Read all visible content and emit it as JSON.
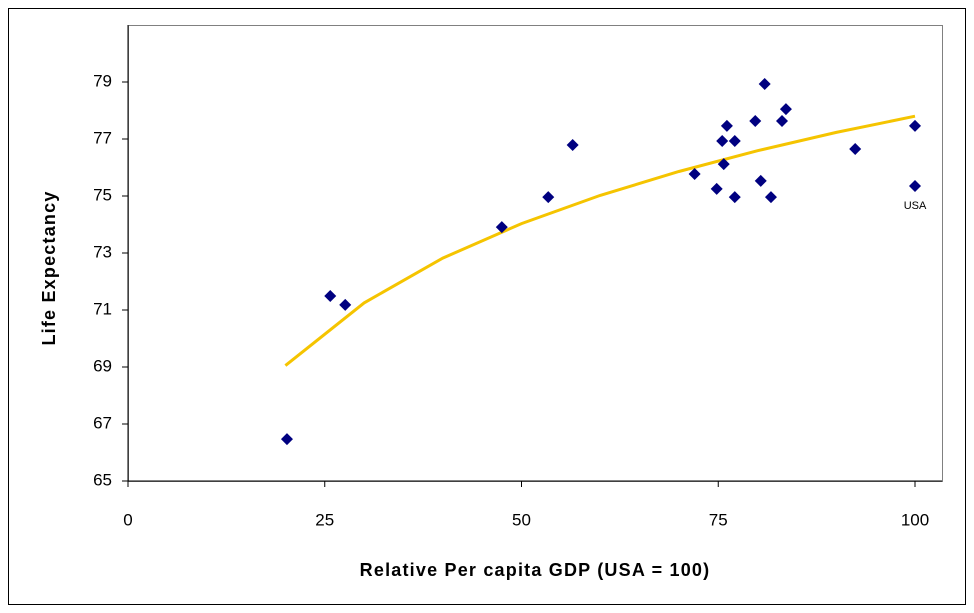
{
  "chart_data": {
    "type": "scatter",
    "x_label": "Relative Per capita GDP (USA = 100)",
    "y_label": "Life Expectancy",
    "series": [
      {
        "color": "#000080",
        "x": [
          20.2,
          25.7,
          27.6,
          47.5,
          53.4,
          56.5,
          72.0,
          74.8,
          75.5,
          75.7,
          76.1,
          77.1,
          77.1,
          79.7,
          80.4,
          80.9,
          81.7,
          83.1,
          83.6,
          92.4,
          100,
          100
        ],
        "values": [
          66.47,
          71.49,
          71.18,
          73.91,
          74.96,
          76.79,
          75.77,
          75.25,
          76.93,
          76.12,
          77.46,
          76.93,
          74.96,
          77.63,
          75.53,
          78.93,
          74.96,
          77.63,
          78.05,
          76.65,
          77.46,
          75.35
        ]
      }
    ],
    "trendline": {
      "color": "#f5c400",
      "x": [
        20,
        30,
        40,
        50,
        60,
        70,
        80,
        90,
        100
      ],
      "values": [
        69.05,
        71.25,
        72.82,
        74.03,
        75.02,
        75.86,
        76.59,
        77.23,
        77.8
      ]
    },
    "annotations": [
      {
        "text": "USA",
        "x": 100,
        "y": 75.35
      }
    ],
    "xlim": [
      0,
      100
    ],
    "xticks": [
      0,
      25,
      50,
      75,
      100
    ],
    "ylim": [
      65,
      79
    ],
    "yticks": [
      65,
      67,
      69,
      71,
      73,
      75,
      77,
      79
    ],
    "grid": false
  }
}
